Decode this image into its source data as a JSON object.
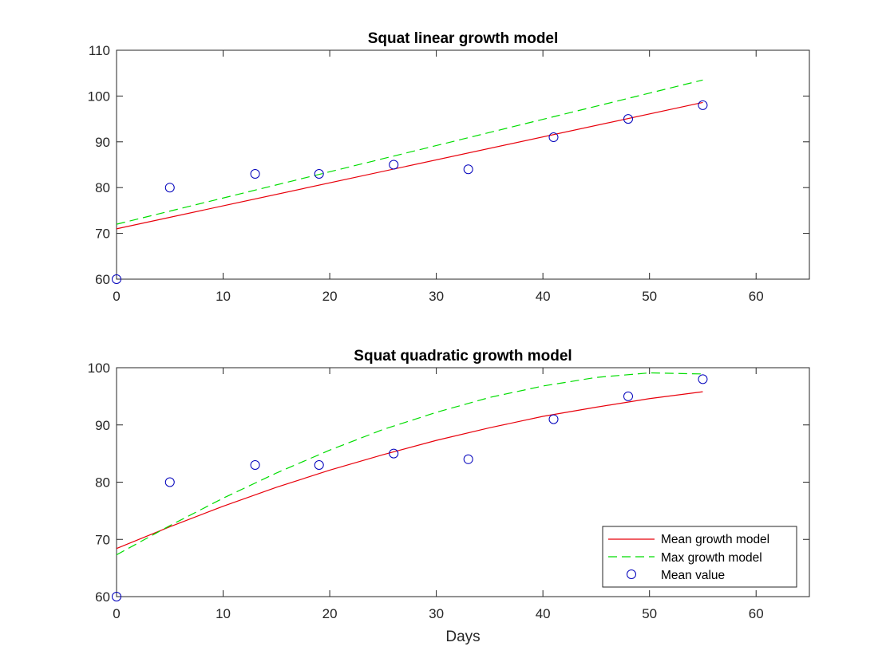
{
  "figure": {
    "background": "#ffffff"
  },
  "chart_data": [
    {
      "type": "line",
      "title": "Squat linear growth model",
      "xlabel": "",
      "ylabel": "",
      "xlim": [
        0,
        65
      ],
      "ylim": [
        60,
        110
      ],
      "xticks": [
        "0",
        "10",
        "20",
        "30",
        "40",
        "50",
        "60"
      ],
      "yticks": [
        "60",
        "70",
        "80",
        "90",
        "100",
        "110"
      ],
      "grid": false,
      "series": [
        {
          "name": "Mean growth model",
          "style": "solid",
          "color": "#e8000b",
          "x": [
            0,
            55
          ],
          "y": [
            71.0,
            98.6
          ]
        },
        {
          "name": "Max growth model",
          "style": "dashed",
          "color": "#00dd00",
          "x": [
            0,
            55
          ],
          "y": [
            72.0,
            103.5
          ]
        },
        {
          "name": "Mean value",
          "style": "markers",
          "marker": "circle",
          "color": "#0000bb",
          "x": [
            0,
            5,
            13,
            19,
            26,
            33,
            41,
            48,
            55
          ],
          "y": [
            60,
            80,
            83,
            83,
            85,
            84,
            91,
            95,
            98
          ]
        }
      ]
    },
    {
      "type": "line",
      "title": "Squat quadratic growth model",
      "xlabel": "Days",
      "ylabel": "",
      "xlim": [
        0,
        65
      ],
      "ylim": [
        60,
        100
      ],
      "xticks": [
        "0",
        "10",
        "20",
        "30",
        "40",
        "50",
        "60"
      ],
      "yticks": [
        "60",
        "70",
        "80",
        "90",
        "100"
      ],
      "grid": false,
      "legend": {
        "position": "bottom-right",
        "entries": [
          "Mean growth model",
          "Max growth model",
          "Mean value"
        ]
      },
      "series": [
        {
          "name": "Mean growth model",
          "style": "solid",
          "color": "#e8000b",
          "x": [
            0,
            5,
            10,
            15,
            20,
            25,
            30,
            35,
            40,
            45,
            50,
            55
          ],
          "y": [
            68.4,
            72.2,
            75.8,
            79.1,
            82.1,
            84.8,
            87.3,
            89.5,
            91.5,
            93.1,
            94.6,
            95.8
          ]
        },
        {
          "name": "Max growth model",
          "style": "dashed",
          "color": "#00dd00",
          "x": [
            0,
            5,
            10,
            15,
            20,
            25,
            30,
            35,
            40,
            45,
            50,
            55
          ],
          "y": [
            67.3,
            72.4,
            77.2,
            81.6,
            85.6,
            89.2,
            92.2,
            94.8,
            96.8,
            98.3,
            99.1,
            98.9
          ]
        },
        {
          "name": "Mean value",
          "style": "markers",
          "marker": "circle",
          "color": "#0000bb",
          "x": [
            0,
            5,
            13,
            19,
            26,
            33,
            41,
            48,
            55
          ],
          "y": [
            60,
            80,
            83,
            83,
            85,
            84,
            91,
            95,
            98
          ]
        }
      ]
    }
  ]
}
